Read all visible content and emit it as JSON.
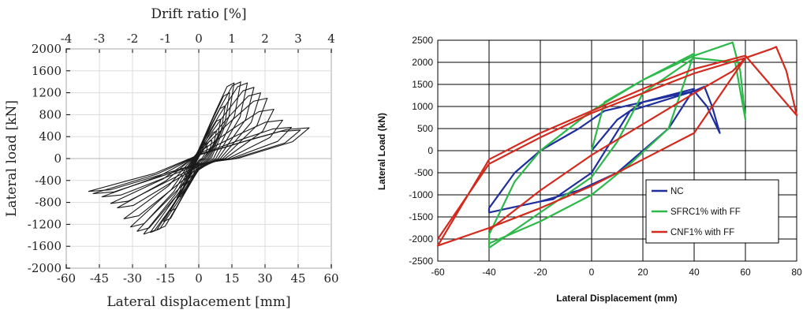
{
  "chart_data": [
    {
      "type": "line",
      "title": "",
      "xlabel": "Lateral displacement [mm]",
      "ylabel": "Lateral load [kN]",
      "x2label": "Drift ratio [%]",
      "xlim": [
        -60,
        60
      ],
      "ylim": [
        -2000,
        2000
      ],
      "x2lim": [
        -4,
        4
      ],
      "xticks": [
        "-60",
        "-45",
        "-30",
        "-15",
        "0",
        "15",
        "30",
        "45",
        "60"
      ],
      "yticks": [
        "2000",
        "1600",
        "1200",
        "800",
        "400",
        "0",
        "-400",
        "-800",
        "-1200",
        "-1600",
        "-2000"
      ],
      "x2ticks": [
        "-4",
        "-3",
        "-2",
        "-1",
        "0",
        "1",
        "2",
        "3",
        "4"
      ],
      "grid": true,
      "line_color": "#1a1a1a",
      "series": [
        {
          "hysteresis_peaks": [
            {
              "disp": 4,
              "load": 230
            },
            {
              "disp": 6,
              "load": 330
            },
            {
              "disp": 8,
              "load": 500
            },
            {
              "disp": 10,
              "load": 720
            },
            {
              "disp": 12,
              "load": 960
            },
            {
              "disp": 14,
              "load": 1200
            },
            {
              "disp": 16,
              "load": 1380
            },
            {
              "disp": 19,
              "load": 1400
            },
            {
              "disp": 22,
              "load": 1380
            },
            {
              "disp": 25,
              "load": 1300
            },
            {
              "disp": 28,
              "load": 1200
            },
            {
              "disp": 31,
              "load": 1100
            },
            {
              "disp": 34,
              "load": 900
            },
            {
              "disp": 38,
              "load": 700
            },
            {
              "disp": 42,
              "load": 570
            },
            {
              "disp": 46,
              "load": 520
            },
            {
              "disp": 50,
              "load": 560
            }
          ],
          "hysteresis_troughs": [
            {
              "disp": -4,
              "load": -230
            },
            {
              "disp": -6,
              "load": -330
            },
            {
              "disp": -8,
              "load": -500
            },
            {
              "disp": -10,
              "load": -720
            },
            {
              "disp": -13,
              "load": -960
            },
            {
              "disp": -16,
              "load": -1150
            },
            {
              "disp": -19,
              "load": -1300
            },
            {
              "disp": -22,
              "load": -1350
            },
            {
              "disp": -25,
              "load": -1380
            },
            {
              "disp": -28,
              "load": -1330
            },
            {
              "disp": -31,
              "load": -1250
            },
            {
              "disp": -34,
              "load": -1100
            },
            {
              "disp": -37,
              "load": -900
            },
            {
              "disp": -40,
              "load": -820
            },
            {
              "disp": -44,
              "load": -700
            },
            {
              "disp": -48,
              "load": -640
            },
            {
              "disp": -50,
              "load": -600
            }
          ]
        }
      ]
    },
    {
      "type": "line",
      "title": "",
      "xlabel": "Lateral Displacement (mm)",
      "ylabel": "Lateral Load (kN)",
      "xlim": [
        -60,
        80
      ],
      "ylim": [
        -2500,
        2500
      ],
      "xticks": [
        "-60",
        "-40",
        "-20",
        "0",
        "20",
        "40",
        "60",
        "80"
      ],
      "yticks": [
        "2500",
        "2000",
        "1500",
        "1000",
        "500",
        "0",
        "-500",
        "-1000",
        "-1500",
        "-2000",
        "-2500"
      ],
      "grid": true,
      "legend_position": "bottom-right",
      "series": [
        {
          "name": "NC",
          "color": "#1f2f9e",
          "points": [
            [
              0,
              0
            ],
            [
              10,
              700
            ],
            [
              20,
              1100
            ],
            [
              40,
              1350
            ],
            [
              44,
              1450
            ],
            [
              47,
              1000
            ],
            [
              50,
              400
            ],
            [
              45,
              1000
            ],
            [
              40,
              1350
            ],
            [
              15,
              900
            ],
            [
              0,
              -500
            ],
            [
              -15,
              -1100
            ],
            [
              -20,
              -1150
            ],
            [
              -40,
              -1400
            ],
            [
              -40,
              -1300
            ],
            [
              -30,
              -500
            ],
            [
              -20,
              0
            ],
            [
              -5,
              500
            ],
            [
              5,
              900
            ],
            [
              20,
              1100
            ],
            [
              40,
              1400
            ],
            [
              30,
              500
            ],
            [
              20,
              0
            ],
            [
              10,
              -500
            ],
            [
              -5,
              -900
            ],
            [
              -20,
              -1150
            ]
          ]
        },
        {
          "name": "SFRC1% with FF",
          "color": "#2db84a",
          "points": [
            [
              0,
              0
            ],
            [
              5,
              1100
            ],
            [
              20,
              1600
            ],
            [
              40,
              2150
            ],
            [
              50,
              2350
            ],
            [
              55,
              2450
            ],
            [
              58,
              1800
            ],
            [
              60,
              700
            ],
            [
              56,
              2000
            ],
            [
              40,
              2100
            ],
            [
              20,
              1300
            ],
            [
              10,
              200
            ],
            [
              0,
              -600
            ],
            [
              -20,
              -1400
            ],
            [
              -40,
              -2200
            ],
            [
              -40,
              -1900
            ],
            [
              -30,
              -700
            ],
            [
              -20,
              0
            ],
            [
              0,
              900
            ],
            [
              20,
              1600
            ],
            [
              40,
              2200
            ],
            [
              30,
              500
            ],
            [
              15,
              -300
            ],
            [
              0,
              -1000
            ],
            [
              -20,
              -1600
            ],
            [
              -40,
              -2100
            ]
          ]
        },
        {
          "name": "CNF1% with FF",
          "color": "#d42a1e",
          "points": [
            [
              -60,
              -2000
            ],
            [
              -40,
              -300
            ],
            [
              -20,
              300
            ],
            [
              0,
              850
            ],
            [
              20,
              1300
            ],
            [
              40,
              1750
            ],
            [
              60,
              2100
            ],
            [
              70,
              2300
            ],
            [
              72,
              2350
            ],
            [
              76,
              1800
            ],
            [
              80,
              800
            ],
            [
              60,
              2150
            ],
            [
              40,
              1850
            ],
            [
              20,
              1400
            ],
            [
              0,
              900
            ],
            [
              -20,
              400
            ],
            [
              -40,
              -200
            ],
            [
              -60,
              -2150
            ],
            [
              -40,
              -1750
            ],
            [
              -20,
              -1300
            ],
            [
              0,
              -800
            ],
            [
              20,
              -200
            ],
            [
              40,
              400
            ],
            [
              60,
              2100
            ],
            [
              55,
              1800
            ],
            [
              40,
              1300
            ],
            [
              20,
              600
            ],
            [
              0,
              -100
            ],
            [
              -20,
              -900
            ],
            [
              -40,
              -1800
            ]
          ]
        }
      ]
    }
  ]
}
